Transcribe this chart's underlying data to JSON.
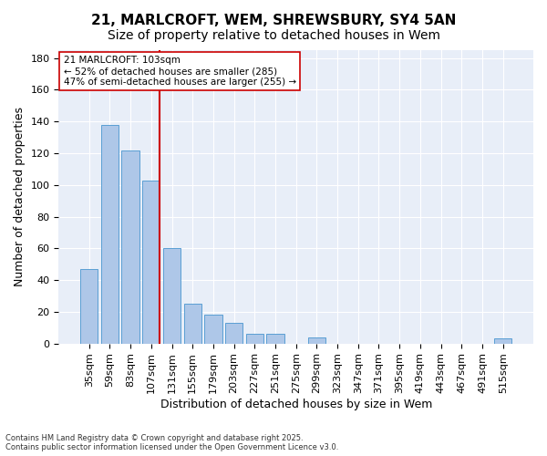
{
  "title": "21, MARLCROFT, WEM, SHREWSBURY, SY4 5AN",
  "subtitle": "Size of property relative to detached houses in Wem",
  "xlabel": "Distribution of detached houses by size in Wem",
  "ylabel": "Number of detached properties",
  "footer_line1": "Contains HM Land Registry data © Crown copyright and database right 2025.",
  "footer_line2": "Contains public sector information licensed under the Open Government Licence v3.0.",
  "categories": [
    "35sqm",
    "59sqm",
    "83sqm",
    "107sqm",
    "131sqm",
    "155sqm",
    "179sqm",
    "203sqm",
    "227sqm",
    "251sqm",
    "275sqm",
    "299sqm",
    "323sqm",
    "347sqm",
    "371sqm",
    "395sqm",
    "419sqm",
    "443sqm",
    "467sqm",
    "491sqm",
    "515sqm"
  ],
  "values": [
    47,
    138,
    122,
    103,
    60,
    25,
    18,
    13,
    6,
    6,
    0,
    4,
    0,
    0,
    0,
    0,
    0,
    0,
    0,
    0,
    3
  ],
  "bar_color": "#aec7e8",
  "bar_edge_color": "#5a9fd4",
  "vline_x_index": 3,
  "vline_color": "#cc0000",
  "annotation_text": "21 MARLCROFT: 103sqm\n← 52% of detached houses are smaller (285)\n47% of semi-detached houses are larger (255) →",
  "annotation_box_color": "#ffffff",
  "annotation_box_edge": "#cc0000",
  "ylim": [
    0,
    185
  ],
  "yticks": [
    0,
    20,
    40,
    60,
    80,
    100,
    120,
    140,
    160,
    180
  ],
  "bg_color": "#e8eef8",
  "grid_color": "#ffffff",
  "title_fontsize": 11,
  "subtitle_fontsize": 10,
  "axis_fontsize": 9,
  "tick_fontsize": 8
}
